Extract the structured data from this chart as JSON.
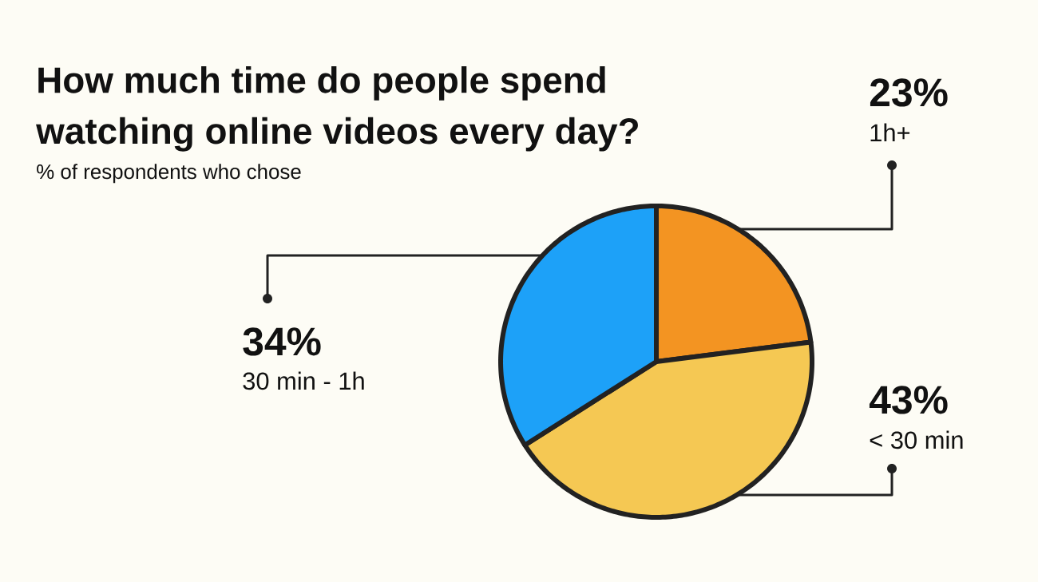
{
  "chart_data": {
    "type": "pie",
    "title": "How much time do people spend watching online videos every day?",
    "subtitle": "% of respondents who chose",
    "categories": [
      "1h+",
      "< 30 min",
      "30 min - 1h"
    ],
    "values": [
      23,
      43,
      34
    ],
    "colors": [
      "#F39422",
      "#F5C853",
      "#1DA1F8"
    ],
    "value_labels": [
      "23%",
      "43%",
      "34%"
    ]
  }
}
